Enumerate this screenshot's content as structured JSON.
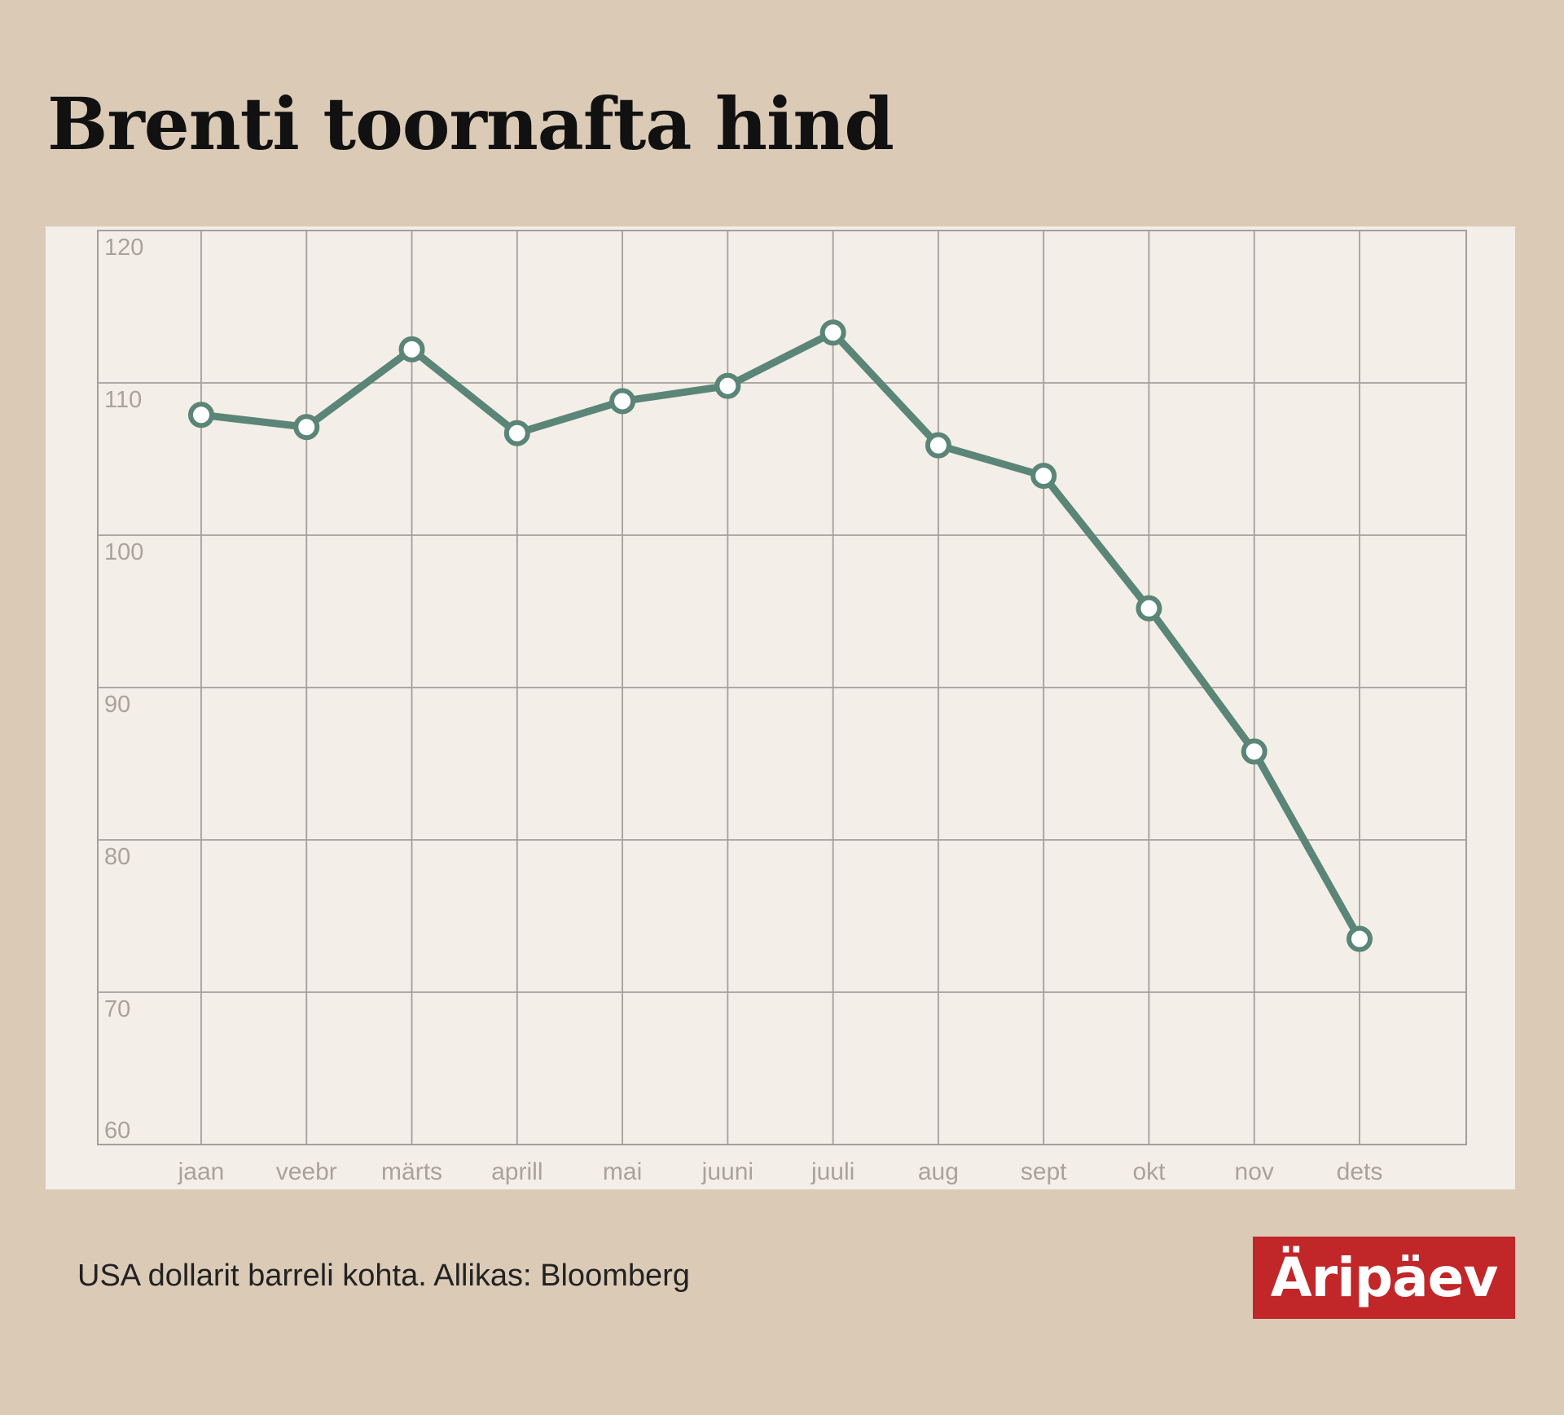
{
  "title": "Brenti toornafta hind",
  "footnote": "USA dollarit barreli kohta. Allikas: Bloomberg",
  "logo_text": "Äripäev",
  "colors": {
    "background": "#dbcbb6",
    "panel": "#f3eee8",
    "line": "#5a8577",
    "grid": "#a39f9a",
    "tick_text": "#a8a29b",
    "logo_bg": "#c12629"
  },
  "chart_data": {
    "type": "line",
    "title": "Brenti toornafta hind",
    "xlabel": "",
    "ylabel": "",
    "categories": [
      "jaan",
      "veebr",
      "märts",
      "aprill",
      "mai",
      "juuni",
      "juuli",
      "aug",
      "sept",
      "okt",
      "nov",
      "dets"
    ],
    "series": [
      {
        "values": [
          107.9,
          107.1,
          112.2,
          106.7,
          108.8,
          109.8,
          113.3,
          105.9,
          103.9,
          95.2,
          85.8,
          73.5
        ]
      }
    ],
    "y_ticks": [
      120,
      110,
      100,
      90,
      80,
      70,
      60
    ],
    "ylim": [
      60,
      120
    ],
    "grid": true,
    "legend": "none",
    "markers": "hollow circles"
  }
}
